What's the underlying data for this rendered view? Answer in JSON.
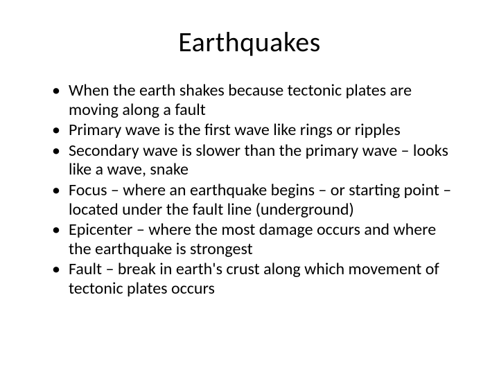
{
  "slide": {
    "title": "Earthquakes",
    "title_fontsize": 40,
    "body_fontsize": 24,
    "background_color": "#ffffff",
    "text_color": "#000000",
    "font_family": "Calibri",
    "bullets": [
      "When the earth shakes because tectonic plates are moving along a fault",
      "Primary wave is the first wave like rings or ripples",
      "Secondary wave is slower than the primary wave – looks like a wave, snake",
      "Focus – where an earthquake begins – or starting point – located under the fault line (underground)",
      "Epicenter – where the most damage occurs and where the earthquake is strongest",
      "Fault – break in earth's crust along which movement of tectonic plates occurs"
    ]
  }
}
